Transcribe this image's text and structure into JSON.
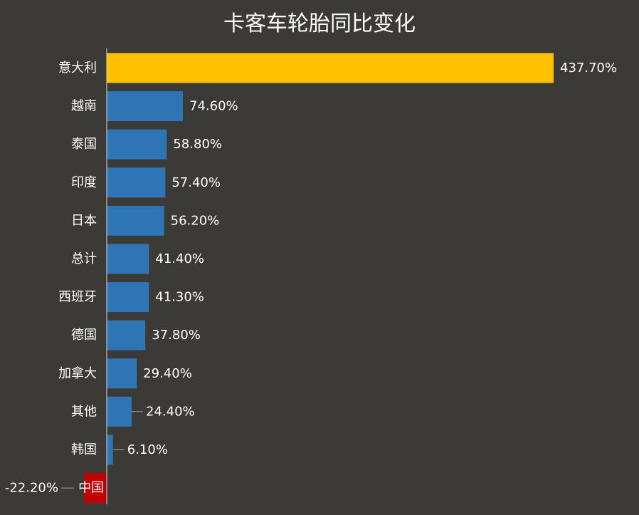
{
  "chart_data": {
    "type": "bar",
    "orientation": "horizontal",
    "title": "卡客车轮胎同比变化",
    "categories": [
      "意大利",
      "越南",
      "泰国",
      "印度",
      "日本",
      "总计",
      "西班牙",
      "德国",
      "加拿大",
      "其他",
      "韩国",
      "中国"
    ],
    "values": [
      437.7,
      74.6,
      58.8,
      57.4,
      56.2,
      41.4,
      41.3,
      37.8,
      29.4,
      24.4,
      6.1,
      -22.2
    ],
    "value_labels": [
      "437.70%",
      "74.60%",
      "58.80%",
      "57.40%",
      "56.20%",
      "41.40%",
      "41.30%",
      "37.80%",
      "29.40%",
      "24.40%",
      "6.10%",
      "-22.20%"
    ],
    "unit": "%",
    "grid": false,
    "legend": "none",
    "colors": {
      "highlight": "#ffc000",
      "default": "#2e75b6",
      "negative": "#c00000",
      "background": "#3b3a37",
      "text": "#ffffff",
      "axis": "#d9d9d9"
    },
    "highlight_category": "意大利"
  }
}
